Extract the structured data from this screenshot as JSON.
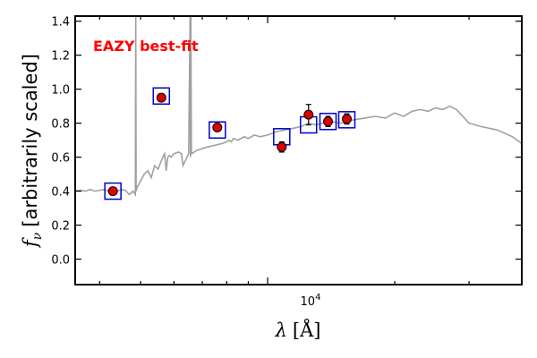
{
  "chart_data": {
    "type": "scatter",
    "title": "",
    "annotation": "EAZY best-fit",
    "annotation_color": "#ff0000",
    "xlabel_symbol": "λ",
    "xlabel_unit": "[Å]",
    "ylabel_symbol": "f",
    "ylabel_subscript": "ν",
    "ylabel_text": "[arbitrarily scaled]",
    "x_scale": "log",
    "xlim": [
      3500,
      40000
    ],
    "ylim": [
      -0.15,
      1.43
    ],
    "xtick_major_label": {
      "base": "10",
      "exponent": "4",
      "value": 10000
    },
    "yticks": [
      0.0,
      0.2,
      0.4,
      0.6,
      0.8,
      1.0,
      1.2,
      1.4
    ],
    "ytick_labels": [
      "0.0",
      "0.2",
      "0.4",
      "0.6",
      "0.8",
      "1.0",
      "1.2",
      "1.4"
    ],
    "grid": false,
    "legend": "none",
    "series": [
      {
        "kind": "template_spectrum",
        "color": "#a0a0a0",
        "x": [
          3500,
          3600,
          3700,
          3800,
          3900,
          4000,
          4100,
          4200,
          4300,
          4400,
          4500,
          4600,
          4700,
          4800,
          4860,
          4870,
          4880,
          4900,
          5000,
          5100,
          5200,
          5300,
          5400,
          5500,
          5600,
          5700,
          5750,
          5800,
          5850,
          5900,
          6000,
          6150,
          6250,
          6300,
          6500,
          6550,
          6565,
          6575,
          6600,
          6700,
          6800,
          7000,
          7200,
          7500,
          7800,
          8000,
          8100,
          8200,
          8300,
          8500,
          8800,
          9000,
          9300,
          9600,
          10000,
          10500,
          11000,
          11500,
          12000,
          12500,
          13000,
          13500,
          14000,
          15000,
          16000,
          17000,
          18000,
          19000,
          20000,
          21000,
          22000,
          23000,
          24000,
          25000,
          26000,
          27000,
          28000,
          29000,
          30000,
          32000,
          35000,
          38000,
          40000
        ],
        "y": [
          0.4,
          0.405,
          0.4,
          0.41,
          0.4,
          0.405,
          0.41,
          0.4,
          0.405,
          0.4,
          0.41,
          0.405,
          0.38,
          0.4,
          0.38,
          1.43,
          0.4,
          0.42,
          0.46,
          0.5,
          0.52,
          0.48,
          0.55,
          0.53,
          0.58,
          0.62,
          0.52,
          0.6,
          0.61,
          0.6,
          0.62,
          0.63,
          0.62,
          0.55,
          0.62,
          1.43,
          0.6,
          1.43,
          0.62,
          0.63,
          0.64,
          0.65,
          0.66,
          0.67,
          0.68,
          0.69,
          0.7,
          0.69,
          0.71,
          0.7,
          0.72,
          0.71,
          0.73,
          0.72,
          0.73,
          0.75,
          0.76,
          0.77,
          0.78,
          0.8,
          0.79,
          0.8,
          0.81,
          0.8,
          0.82,
          0.83,
          0.84,
          0.83,
          0.86,
          0.84,
          0.87,
          0.88,
          0.87,
          0.89,
          0.88,
          0.9,
          0.88,
          0.84,
          0.8,
          0.78,
          0.76,
          0.72,
          0.68
        ]
      },
      {
        "kind": "model_photometry",
        "color": "#0000cc",
        "x": [
          4300,
          5600,
          7600,
          10800,
          12500,
          13900,
          15400
        ],
        "y": [
          0.4,
          0.96,
          0.76,
          0.72,
          0.79,
          0.81,
          0.82
        ]
      },
      {
        "kind": "observed_photometry",
        "color": "#dd0000",
        "x": [
          4300,
          5600,
          7600,
          10800,
          12500,
          13900,
          15400
        ],
        "y": [
          0.4,
          0.95,
          0.775,
          0.66,
          0.85,
          0.81,
          0.825
        ],
        "yerr": [
          0.02,
          0.02,
          0.02,
          0.03,
          0.06,
          0.03,
          0.03
        ]
      }
    ]
  }
}
